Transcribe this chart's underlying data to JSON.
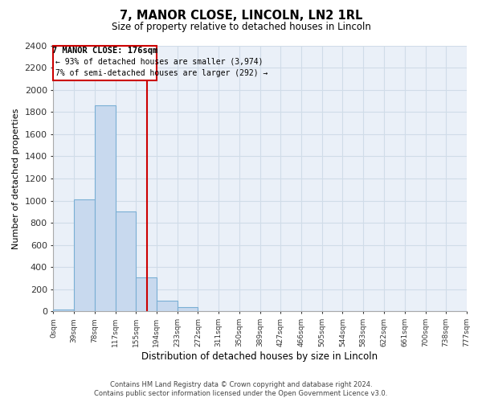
{
  "title": "7, MANOR CLOSE, LINCOLN, LN2 1RL",
  "subtitle": "Size of property relative to detached houses in Lincoln",
  "xlabel": "Distribution of detached houses by size in Lincoln",
  "ylabel": "Number of detached properties",
  "bar_edges": [
    0,
    39,
    78,
    117,
    155,
    194,
    233,
    272,
    311,
    350,
    389,
    427,
    466,
    505,
    544,
    583,
    622,
    661,
    700,
    738,
    777
  ],
  "bar_heights": [
    20,
    1010,
    1860,
    900,
    305,
    100,
    40,
    0,
    0,
    0,
    0,
    0,
    0,
    0,
    0,
    0,
    0,
    0,
    0,
    0
  ],
  "bar_color": "#c8d9ee",
  "bar_edge_color": "#7aafd4",
  "property_line_x": 176,
  "property_line_color": "#cc0000",
  "ylim": [
    0,
    2400
  ],
  "yticks": [
    0,
    200,
    400,
    600,
    800,
    1000,
    1200,
    1400,
    1600,
    1800,
    2000,
    2200,
    2400
  ],
  "tick_labels": [
    "0sqm",
    "39sqm",
    "78sqm",
    "117sqm",
    "155sqm",
    "194sqm",
    "233sqm",
    "272sqm",
    "311sqm",
    "350sqm",
    "389sqm",
    "427sqm",
    "466sqm",
    "505sqm",
    "544sqm",
    "583sqm",
    "622sqm",
    "661sqm",
    "700sqm",
    "738sqm",
    "777sqm"
  ],
  "annotation_title": "7 MANOR CLOSE: 176sqm",
  "annotation_line1": "← 93% of detached houses are smaller (3,974)",
  "annotation_line2": "7% of semi-detached houses are larger (292) →",
  "footer1": "Contains HM Land Registry data © Crown copyright and database right 2024.",
  "footer2": "Contains public sector information licensed under the Open Government Licence v3.0.",
  "grid_color": "#d0dce8",
  "background_color": "#ffffff",
  "ax_bg_color": "#eaf0f8"
}
